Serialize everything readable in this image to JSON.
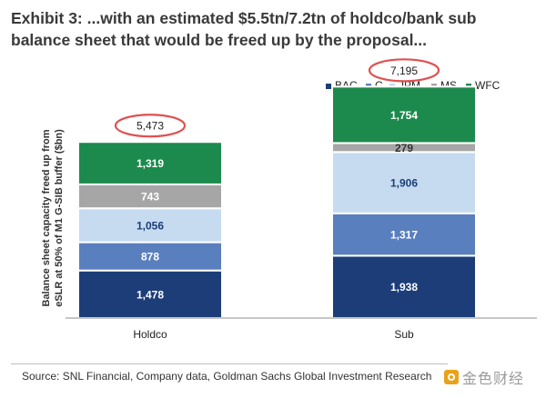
{
  "title": "Exhibit 3: ...with an estimated $5.5tn/7.2tn of holdco/bank sub balance sheet that would be freed up by the proposal...",
  "source": "Source: SNL Financial, Company data, Goldman Sachs Global Investment Research",
  "watermark": {
    "text": "金色财经",
    "icon": "gold-coin-logo-icon"
  },
  "colors": {
    "BAC": "#1c3d78",
    "C": "#5a7fbe",
    "JPM": "#c6dbf0",
    "MS": "#a6a6a6",
    "WFC": "#1d8a4d",
    "total_circle": "#e05050"
  },
  "chart_data": {
    "type": "bar",
    "stacked": true,
    "categories": [
      "Holdco",
      "Sub"
    ],
    "series": [
      {
        "name": "BAC",
        "values": [
          1478,
          1938
        ]
      },
      {
        "name": "C",
        "values": [
          878,
          1317
        ]
      },
      {
        "name": "JPM",
        "values": [
          1056,
          1906
        ]
      },
      {
        "name": "MS",
        "values": [
          743,
          279
        ]
      },
      {
        "name": "WFC",
        "values": [
          1319,
          1754
        ]
      }
    ],
    "totals": [
      "5,473",
      "7,195"
    ],
    "value_labels": [
      [
        "1,478",
        "878",
        "1,056",
        "743",
        "1,319"
      ],
      [
        "1,938",
        "1,317",
        "1,906",
        "279",
        "1,754"
      ]
    ],
    "ylabel": "Balance sheet capacity freed up from eSLR at 50% of M1 G-SIB buffer ($bn)",
    "ylabel_lines": [
      "Balance sheet capacity freed up from",
      "eSLR at 50% of M1 G-SIB buffer ($bn)"
    ],
    "legend_position": "top-right",
    "ylim": [
      0,
      8000
    ],
    "grid": false
  }
}
